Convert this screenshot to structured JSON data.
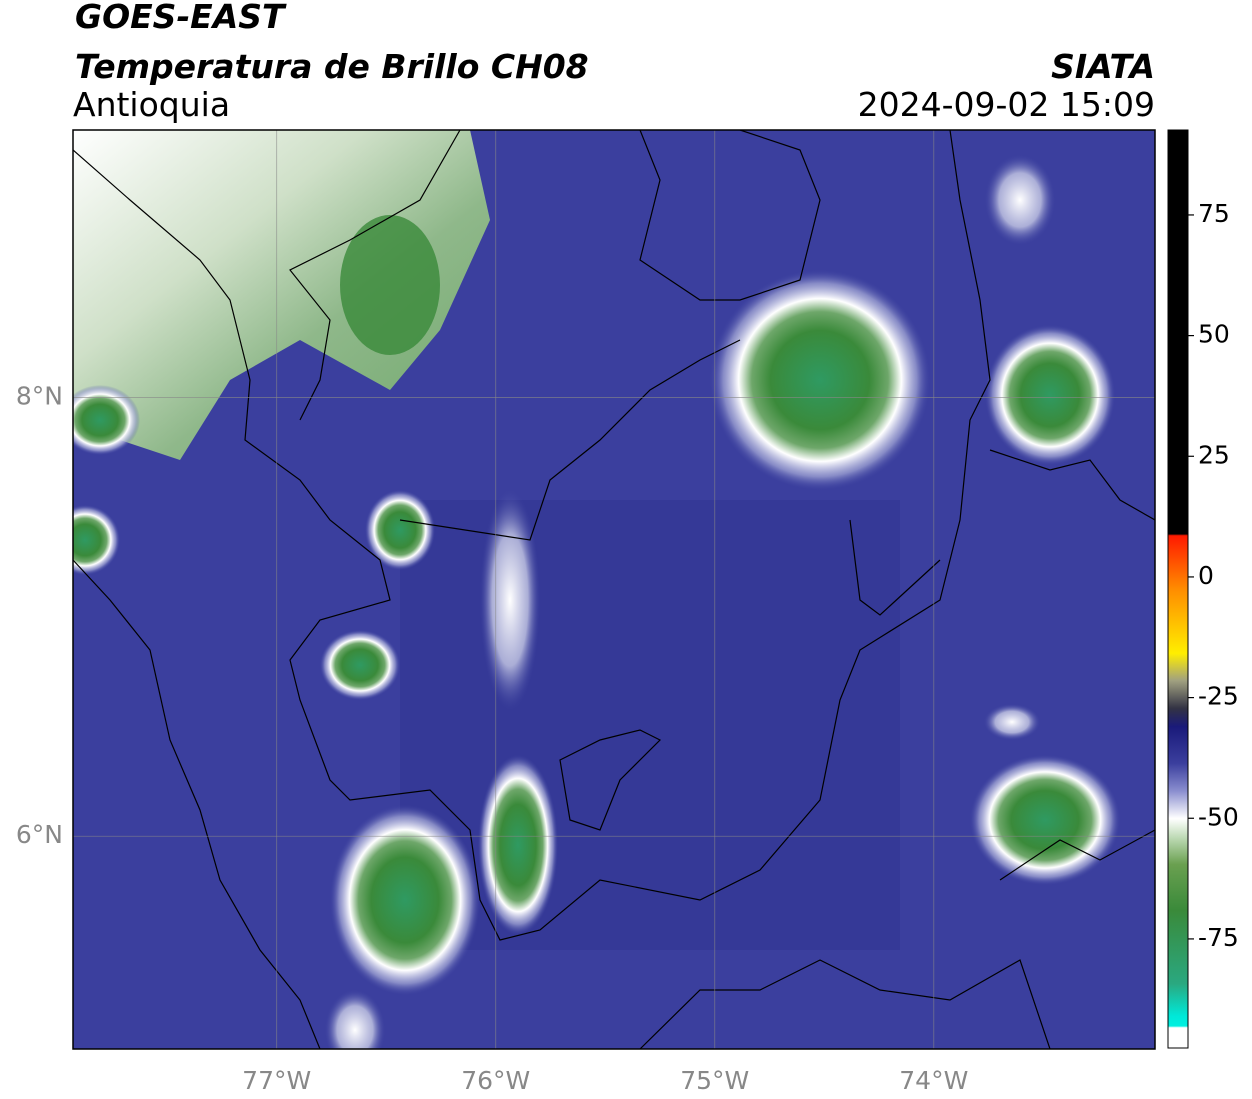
{
  "header": {
    "title": "GOES-EAST",
    "subtitle": "Temperatura de Brillo CH08",
    "region": "Antioquia",
    "source": "SIATA",
    "datetime": "2024-09-02 15:09"
  },
  "map": {
    "xlim": [
      -77.93,
      -72.99
    ],
    "ylim": [
      5.03,
      9.22
    ],
    "xticks": [
      {
        "value": -77,
        "label": "77°W"
      },
      {
        "value": -76,
        "label": "76°W"
      },
      {
        "value": -75,
        "label": "75°W"
      },
      {
        "value": -74,
        "label": "74°W"
      }
    ],
    "yticks": [
      {
        "value": 8,
        "label": "8°N"
      },
      {
        "value": 6,
        "label": "6°N"
      }
    ],
    "grid": true
  },
  "colorbar": {
    "lim": [
      -97.6,
      92.6
    ],
    "ticks": [
      -75,
      -50,
      -25,
      0,
      25,
      50,
      75
    ]
  }
}
